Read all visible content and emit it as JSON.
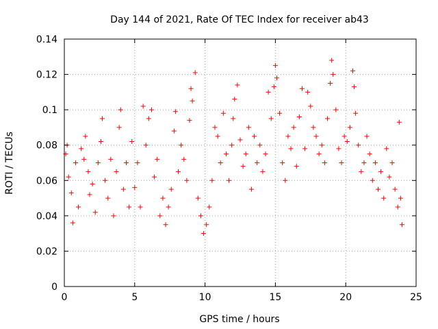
{
  "chart_data": {
    "type": "scatter",
    "title": "Day 144 of 2021, Rate Of TEC Index for receiver ab43",
    "xlabel": "GPS time / hours",
    "ylabel": "ROTI / TECUs",
    "xlim": [
      0,
      25
    ],
    "ylim": [
      0,
      0.14
    ],
    "x_ticks": [
      "0",
      "5",
      "10",
      "15",
      "20",
      "25"
    ],
    "y_ticks": [
      "0",
      "0.02",
      "0.04",
      "0.06",
      "0.08",
      "0.1",
      "0.12",
      "0.14"
    ],
    "grid": true,
    "legend": "none",
    "marker": "+",
    "series": [
      {
        "color": "#ff0000",
        "points": [
          [
            0.1,
            0.075
          ],
          [
            0.2,
            0.08
          ],
          [
            0.3,
            0.062
          ],
          [
            0.5,
            0.053
          ],
          [
            0.6,
            0.036
          ],
          [
            0.8,
            0.07
          ],
          [
            1.0,
            0.045
          ],
          [
            1.2,
            0.078
          ],
          [
            1.4,
            0.072
          ],
          [
            1.5,
            0.085
          ],
          [
            1.7,
            0.065
          ],
          [
            1.8,
            0.052
          ],
          [
            2.0,
            0.058
          ],
          [
            2.2,
            0.042
          ],
          [
            2.4,
            0.07
          ],
          [
            2.6,
            0.082
          ],
          [
            2.7,
            0.095
          ],
          [
            2.9,
            0.06
          ],
          [
            3.1,
            0.05
          ],
          [
            3.3,
            0.072
          ],
          [
            3.5,
            0.04
          ],
          [
            3.7,
            0.065
          ],
          [
            3.9,
            0.09
          ],
          [
            4.0,
            0.1
          ],
          [
            4.2,
            0.055
          ],
          [
            4.4,
            0.07
          ],
          [
            4.6,
            0.045
          ],
          [
            4.8,
            0.082
          ],
          [
            5.0,
            0.056
          ],
          [
            5.2,
            0.07
          ],
          [
            5.4,
            0.045
          ],
          [
            5.6,
            0.102
          ],
          [
            5.8,
            0.08
          ],
          [
            6.0,
            0.095
          ],
          [
            6.2,
            0.1
          ],
          [
            6.4,
            0.062
          ],
          [
            6.6,
            0.072
          ],
          [
            6.8,
            0.04
          ],
          [
            7.0,
            0.05
          ],
          [
            7.2,
            0.035
          ],
          [
            7.4,
            0.045
          ],
          [
            7.6,
            0.055
          ],
          [
            7.8,
            0.088
          ],
          [
            7.9,
            0.099
          ],
          [
            8.1,
            0.065
          ],
          [
            8.3,
            0.08
          ],
          [
            8.5,
            0.072
          ],
          [
            8.7,
            0.06
          ],
          [
            8.9,
            0.094
          ],
          [
            9.0,
            0.112
          ],
          [
            9.1,
            0.105
          ],
          [
            9.3,
            0.121
          ],
          [
            9.5,
            0.05
          ],
          [
            9.7,
            0.04
          ],
          [
            9.9,
            0.03
          ],
          [
            10.1,
            0.035
          ],
          [
            10.3,
            0.045
          ],
          [
            10.5,
            0.06
          ],
          [
            10.7,
            0.09
          ],
          [
            10.9,
            0.085
          ],
          [
            11.1,
            0.07
          ],
          [
            11.3,
            0.098
          ],
          [
            11.5,
            0.075
          ],
          [
            11.7,
            0.06
          ],
          [
            11.9,
            0.08
          ],
          [
            12.0,
            0.095
          ],
          [
            12.1,
            0.106
          ],
          [
            12.3,
            0.114
          ],
          [
            12.5,
            0.083
          ],
          [
            12.7,
            0.068
          ],
          [
            12.9,
            0.075
          ],
          [
            13.1,
            0.09
          ],
          [
            13.3,
            0.055
          ],
          [
            13.5,
            0.085
          ],
          [
            13.7,
            0.07
          ],
          [
            13.9,
            0.08
          ],
          [
            14.1,
            0.065
          ],
          [
            14.3,
            0.075
          ],
          [
            14.5,
            0.11
          ],
          [
            14.7,
            0.095
          ],
          [
            14.9,
            0.113
          ],
          [
            15.0,
            0.125
          ],
          [
            15.1,
            0.118
          ],
          [
            15.3,
            0.098
          ],
          [
            15.5,
            0.07
          ],
          [
            15.7,
            0.06
          ],
          [
            15.9,
            0.085
          ],
          [
            16.1,
            0.078
          ],
          [
            16.3,
            0.09
          ],
          [
            16.5,
            0.068
          ],
          [
            16.7,
            0.096
          ],
          [
            16.9,
            0.112
          ],
          [
            17.1,
            0.078
          ],
          [
            17.3,
            0.11
          ],
          [
            17.5,
            0.102
          ],
          [
            17.7,
            0.09
          ],
          [
            17.9,
            0.085
          ],
          [
            18.1,
            0.075
          ],
          [
            18.3,
            0.08
          ],
          [
            18.5,
            0.07
          ],
          [
            18.7,
            0.095
          ],
          [
            18.9,
            0.115
          ],
          [
            19.0,
            0.128
          ],
          [
            19.1,
            0.12
          ],
          [
            19.3,
            0.1
          ],
          [
            19.5,
            0.078
          ],
          [
            19.7,
            0.07
          ],
          [
            19.9,
            0.085
          ],
          [
            20.1,
            0.082
          ],
          [
            20.3,
            0.09
          ],
          [
            20.5,
            0.122
          ],
          [
            20.6,
            0.113
          ],
          [
            20.7,
            0.098
          ],
          [
            20.9,
            0.08
          ],
          [
            21.1,
            0.065
          ],
          [
            21.3,
            0.07
          ],
          [
            21.5,
            0.085
          ],
          [
            21.7,
            0.075
          ],
          [
            21.9,
            0.06
          ],
          [
            22.1,
            0.07
          ],
          [
            22.3,
            0.055
          ],
          [
            22.5,
            0.065
          ],
          [
            22.7,
            0.05
          ],
          [
            22.9,
            0.078
          ],
          [
            23.1,
            0.062
          ],
          [
            23.3,
            0.07
          ],
          [
            23.5,
            0.055
          ],
          [
            23.7,
            0.045
          ],
          [
            23.8,
            0.093
          ],
          [
            23.9,
            0.05
          ],
          [
            24.0,
            0.035
          ]
        ]
      }
    ]
  }
}
